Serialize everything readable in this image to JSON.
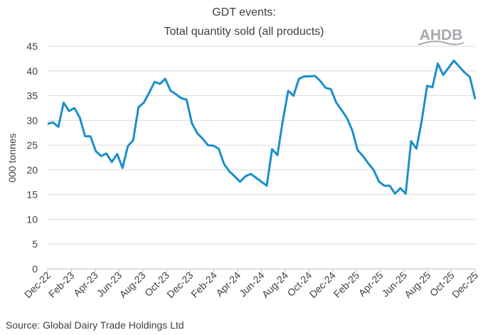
{
  "chart_data": {
    "type": "line",
    "title": [
      "GDT events:",
      "Total quantity sold (all products)"
    ],
    "ylabel": "000 tonnes",
    "xlabel": "",
    "ylim": [
      0,
      45
    ],
    "yticks": [
      0,
      5,
      10,
      15,
      20,
      25,
      30,
      35,
      40,
      45
    ],
    "xticks": [
      "Dec-22",
      "Feb-23",
      "Apr-23",
      "Jun-23",
      "Aug-23",
      "Oct-23",
      "Dec-23",
      "Feb-24",
      "Apr-24",
      "Jun-24",
      "Aug-24",
      "Oct-24",
      "Dec-24",
      "Feb-25",
      "Apr-25",
      "Jun-25",
      "Aug-25",
      "Oct-25",
      "Dec-25"
    ],
    "x_range": [
      "Dec-22",
      "Dec-25"
    ],
    "grid": "horizontal",
    "color": "#1A8FCC",
    "values": [
      29.3,
      29.6,
      28.7,
      33.6,
      31.9,
      32.5,
      30.6,
      26.8,
      26.8,
      23.8,
      22.8,
      23.3,
      21.6,
      23.2,
      20.4,
      24.8,
      26.0,
      32.7,
      33.6,
      35.6,
      37.8,
      37.4,
      38.4,
      36.0,
      35.3,
      34.5,
      34.2,
      29.4,
      27.4,
      26.3,
      25.0,
      24.9,
      24.3,
      21.2,
      19.7,
      18.7,
      17.6,
      18.7,
      19.2,
      18.4,
      17.6,
      16.8,
      24.2,
      23.0,
      30.0,
      36.0,
      35.0,
      38.4,
      38.9,
      38.9,
      39.0,
      38.0,
      36.6,
      36.3,
      33.6,
      32.1,
      30.5,
      28.0,
      24.0,
      22.8,
      21.3,
      20.0,
      17.6,
      16.8,
      16.8,
      15.2,
      16.3,
      15.2,
      25.8,
      24.3,
      30.0,
      37.0,
      36.7,
      41.5,
      39.2,
      40.6,
      42.1,
      40.9,
      39.7,
      38.8,
      34.3
    ]
  },
  "source": "Source: Global Dairy Trade Holdings Ltd",
  "logo": "AHDB"
}
